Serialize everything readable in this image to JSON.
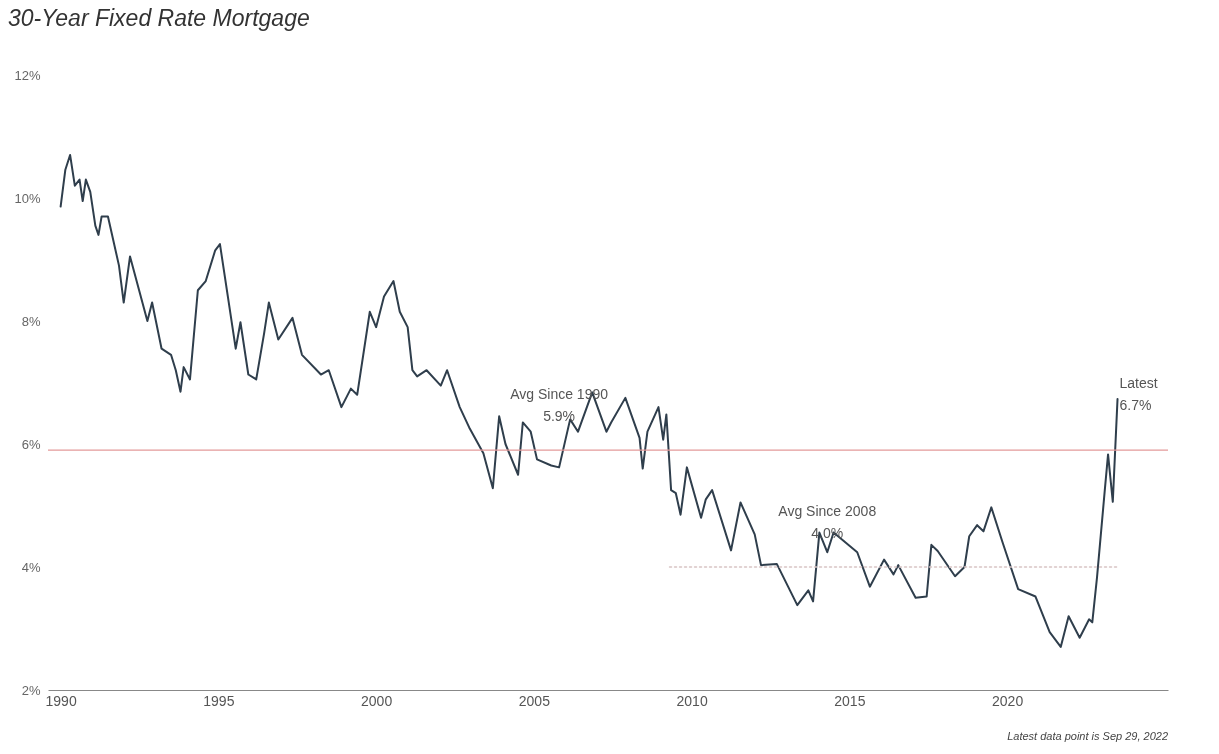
{
  "chart_data": {
    "type": "line",
    "title": "30-Year Fixed Rate Mortgage",
    "xlim": [
      1989.6,
      2025.1
    ],
    "xticks": [
      1990,
      1995,
      2000,
      2005,
      2010,
      2015,
      2020
    ],
    "ylim": [
      2,
      12
    ],
    "yticks": [
      {
        "value": 2,
        "label": "2%"
      },
      {
        "value": 4,
        "label": "4%"
      },
      {
        "value": 6,
        "label": "6%"
      },
      {
        "value": 8,
        "label": "8%"
      },
      {
        "value": 10,
        "label": "10%"
      },
      {
        "value": 12,
        "label": "12%"
      }
    ],
    "grid": false,
    "line_style": "solid",
    "series": [
      {
        "color": "#2f3e4c",
        "x": [
          1990.0,
          1990.15,
          1990.3,
          1990.45,
          1990.6,
          1990.7,
          1990.8,
          1990.94,
          1991.1,
          1991.2,
          1991.3,
          1991.5,
          1991.85,
          1992.0,
          1992.2,
          1992.75,
          1992.9,
          1993.2,
          1993.5,
          1993.65,
          1993.8,
          1993.9,
          1994.1,
          1994.35,
          1994.6,
          1994.9,
          1995.05,
          1995.3,
          1995.55,
          1995.7,
          1995.95,
          1996.2,
          1996.45,
          1996.6,
          1996.9,
          1997.35,
          1997.65,
          1998.25,
          1998.5,
          1998.9,
          1999.2,
          1999.4,
          1999.8,
          2000.0,
          2000.25,
          2000.55,
          2000.75,
          2001.0,
          2001.15,
          2001.3,
          2001.6,
          2002.05,
          2002.25,
          2002.65,
          2002.95,
          2003.4,
          2003.7,
          2003.9,
          2004.1,
          2004.5,
          2004.65,
          2004.9,
          2005.1,
          2005.55,
          2005.8,
          2006.15,
          2006.4,
          2006.85,
          2007.3,
          2007.45,
          2007.9,
          2008.35,
          2008.45,
          2008.6,
          2008.95,
          2009.1,
          2009.2,
          2009.35,
          2009.5,
          2009.65,
          2009.85,
          2010.3,
          2010.45,
          2010.65,
          2011.25,
          2011.55,
          2012.0,
          2012.2,
          2012.7,
          2013.35,
          2013.7,
          2013.85,
          2014.05,
          2014.3,
          2014.5,
          2015.25,
          2015.65,
          2016.1,
          2016.4,
          2016.55,
          2017.1,
          2017.45,
          2017.6,
          2017.8,
          2018.35,
          2018.65,
          2018.8,
          2019.05,
          2019.25,
          2019.5,
          2019.85,
          2020.35,
          2020.9,
          2021.35,
          2021.7,
          2021.95,
          2022.3,
          2022.6,
          2022.7,
          2022.85,
          2023.1,
          2023.2,
          2023.35,
          2023.5
        ],
        "values": [
          9.86,
          10.46,
          10.7,
          10.2,
          10.3,
          9.95,
          10.3,
          10.1,
          9.55,
          9.4,
          9.7,
          9.7,
          8.9,
          8.3,
          9.05,
          8.0,
          8.3,
          7.55,
          7.45,
          7.2,
          6.85,
          7.25,
          7.05,
          8.5,
          8.65,
          9.15,
          9.25,
          8.4,
          7.55,
          7.98,
          7.13,
          7.05,
          7.8,
          8.3,
          7.7,
          8.05,
          7.45,
          7.13,
          7.2,
          6.6,
          6.9,
          6.8,
          8.15,
          7.9,
          8.4,
          8.65,
          8.15,
          7.9,
          7.2,
          7.1,
          7.2,
          6.95,
          7.2,
          6.6,
          6.27,
          5.85,
          5.28,
          6.45,
          6.0,
          5.5,
          6.35,
          6.2,
          5.75,
          5.65,
          5.62,
          6.4,
          6.2,
          6.84,
          6.2,
          6.35,
          6.75,
          6.1,
          5.6,
          6.2,
          6.6,
          6.07,
          6.48,
          5.25,
          5.2,
          4.85,
          5.62,
          4.8,
          5.1,
          5.25,
          4.27,
          5.05,
          4.53,
          4.03,
          4.05,
          3.38,
          3.62,
          3.44,
          4.56,
          4.24,
          4.56,
          4.24,
          3.68,
          4.12,
          3.88,
          4.03,
          3.5,
          3.52,
          4.36,
          4.26,
          3.85,
          4.0,
          4.5,
          4.68,
          4.58,
          4.97,
          4.41,
          3.64,
          3.52,
          2.94,
          2.7,
          3.2,
          2.85,
          3.15,
          3.1,
          3.83,
          5.27,
          5.83,
          5.06,
          6.73
        ]
      },
      {
        "color": "#d8c4c4",
        "line_style": "dotted",
        "x": [
          2009.3,
          2023.5
        ],
        "values": [
          4.0,
          4.0
        ]
      }
    ],
    "ref_lines": [
      {
        "axis": "y",
        "value": 5.9,
        "color": "#e39a9a"
      }
    ],
    "annotations": [
      {
        "text": "Avg Since 1990\n5.9%",
        "x": 2005.8,
        "y": 5.9
      },
      {
        "text": "Avg Since 2008\n4.0%",
        "x": 2014.3,
        "y": 4.0
      },
      {
        "text": "Latest\n6.7%",
        "x": 2023.5,
        "y": 6.73
      },
      "Latest data point is Sep 29, 2022"
    ]
  }
}
